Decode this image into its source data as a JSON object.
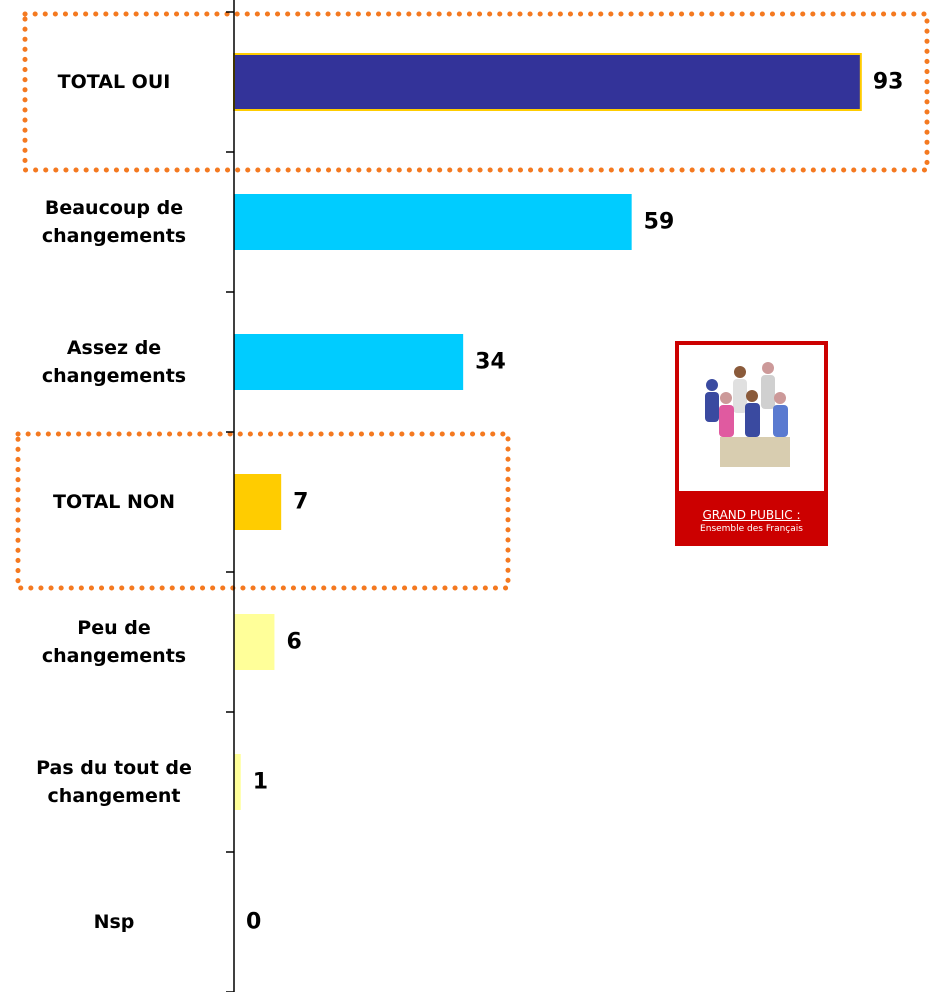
{
  "chart_data": {
    "type": "bar",
    "orientation": "horizontal",
    "categories": [
      "TOTAL OUI",
      "Beaucoup de changements",
      "Assez de changements",
      "TOTAL NON",
      "Peu de changements",
      "Pas du tout de changement",
      "Nsp"
    ],
    "values": [
      93,
      59,
      34,
      7,
      6,
      1,
      0
    ],
    "colors": [
      "#333399",
      "#00ccff",
      "#00ccff",
      "#ffcc00",
      "#ffff99",
      "#ffff99",
      "#ffff99"
    ],
    "xlim": [
      0,
      100
    ],
    "badge": {
      "title": "GRAND PUBLIC :",
      "subtitle": "Ensemble des Français"
    }
  }
}
